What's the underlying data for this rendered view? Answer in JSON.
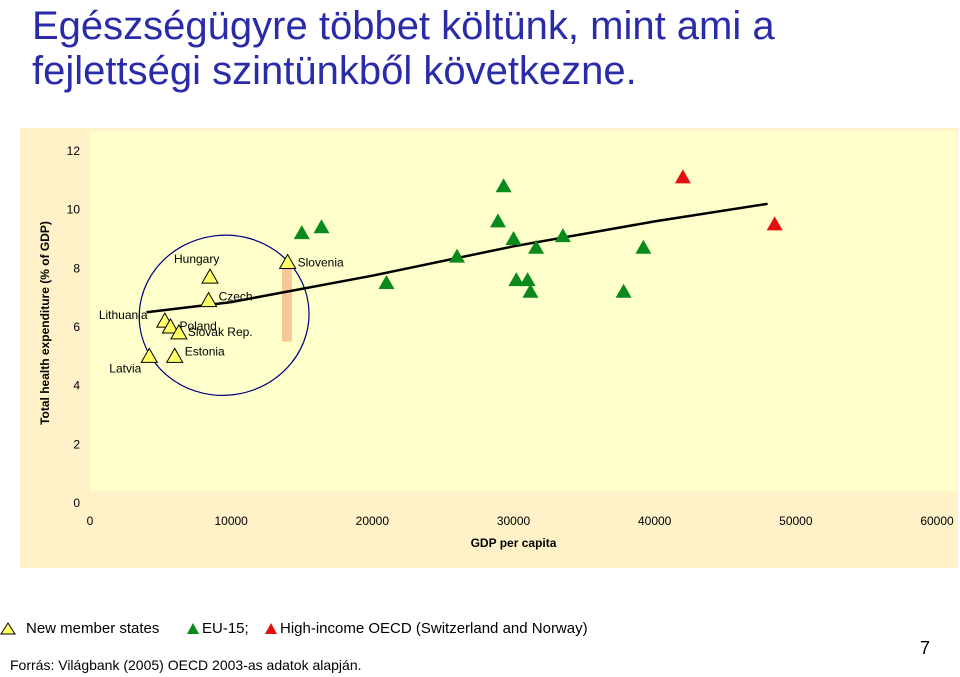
{
  "slide": {
    "title": "Egészségügyre többet költünk, mint ami a fejlettségi szintünkből következne.",
    "source": "Forrás: Világbank (2005) OECD 2003-as adatok alapján.",
    "page_number": "7"
  },
  "legend": {
    "new_member": "New member states",
    "eu15": "EU-15;",
    "high_income": "High-income OECD (Switzerland and Norway)"
  },
  "colors": {
    "title": "#2a2ba8",
    "plot_bg": "#ffffcc",
    "outer_bg": "#fff2c8",
    "new_member": "#ffff66",
    "eu15": "#0a8a1a",
    "high_income": "#e01010",
    "trend": "#000000",
    "ellipse": "#000080",
    "highlight": "#f7c79a"
  },
  "chart_data": {
    "type": "scatter",
    "xlabel": "GDP per capita",
    "ylabel": "Total health expenditure (% of GDP)",
    "xlim": [
      0,
      60000
    ],
    "ylim": [
      0,
      12
    ],
    "x_ticks": [
      "0",
      "10000",
      "20000",
      "30000",
      "40000",
      "50000",
      "60000"
    ],
    "y_ticks": [
      "0",
      "2",
      "4",
      "6",
      "8",
      "10",
      "12"
    ],
    "grid": false,
    "series": [
      {
        "name": "New member states",
        "points": [
          {
            "label": "Hungary",
            "x": 8500,
            "y": 7.7
          },
          {
            "label": "Czech",
            "x": 8400,
            "y": 6.9
          },
          {
            "label": "Lithuania",
            "x": 5300,
            "y": 6.2
          },
          {
            "label": "Poland",
            "x": 5700,
            "y": 6.0
          },
          {
            "label": "Slovak Rep.",
            "x": 6300,
            "y": 5.8
          },
          {
            "label": "Latvia",
            "x": 4200,
            "y": 5.0
          },
          {
            "label": "Estonia",
            "x": 6000,
            "y": 5.0
          },
          {
            "label": "Slovenia",
            "x": 14000,
            "y": 8.2
          }
        ]
      },
      {
        "name": "EU-15",
        "points": [
          {
            "x": 15000,
            "y": 9.2
          },
          {
            "x": 16400,
            "y": 9.4
          },
          {
            "x": 21000,
            "y": 7.5
          },
          {
            "x": 26000,
            "y": 8.4
          },
          {
            "x": 28900,
            "y": 9.6
          },
          {
            "x": 29300,
            "y": 10.8
          },
          {
            "x": 30000,
            "y": 9.0
          },
          {
            "x": 30200,
            "y": 7.6
          },
          {
            "x": 31000,
            "y": 7.6
          },
          {
            "x": 31200,
            "y": 7.2
          },
          {
            "x": 31600,
            "y": 8.7
          },
          {
            "x": 33500,
            "y": 9.1
          },
          {
            "x": 37800,
            "y": 7.2
          },
          {
            "x": 39200,
            "y": 8.7
          }
        ]
      },
      {
        "name": "High-income OECD (Switzerland and Norway)",
        "points": [
          {
            "x": 42000,
            "y": 11.1
          },
          {
            "x": 48500,
            "y": 9.5
          }
        ]
      }
    ],
    "trendline": [
      {
        "x": 4000,
        "y": 6.5
      },
      {
        "x": 10000,
        "y": 6.85
      },
      {
        "x": 20000,
        "y": 7.75
      },
      {
        "x": 30000,
        "y": 8.75
      },
      {
        "x": 40000,
        "y": 9.6
      },
      {
        "x": 48000,
        "y": 10.2
      }
    ]
  }
}
